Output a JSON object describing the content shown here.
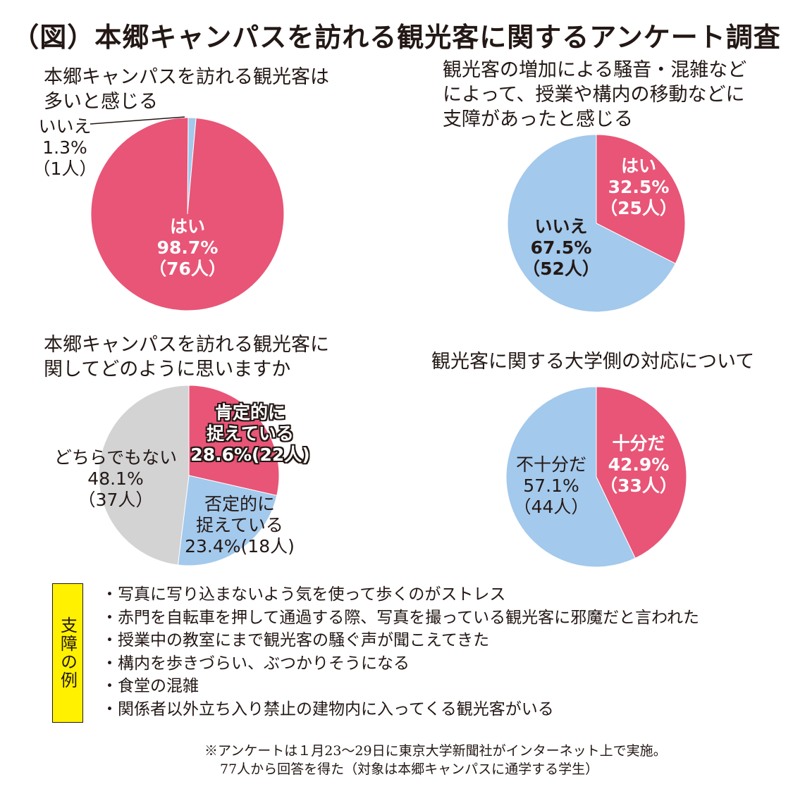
{
  "title": "（図）本郷キャンパスを訪れる観光客に関するアンケート調査",
  "colors": {
    "red": "#e85577",
    "blue": "#a3c9ec",
    "gray": "#d3d3d4",
    "yellow": "#fff100"
  },
  "chart_data": [
    {
      "type": "pie",
      "title": "本郷キャンパスを訪れる観光客は\n多いと感じる",
      "slices": [
        {
          "label": "いいえ",
          "percent": "1.3%",
          "count": "（1人）",
          "value": 1.3,
          "color": "#a3c9ec"
        },
        {
          "label": "はい",
          "percent": "98.7%",
          "count": "（76人）",
          "value": 98.7,
          "color": "#e85577"
        }
      ]
    },
    {
      "type": "pie",
      "title": "観光客の増加による騒音・混雑など\nによって、授業や構内の移動などに\n支障があったと感じる",
      "slices": [
        {
          "label": "はい",
          "percent": "32.5%",
          "count": "（25人）",
          "value": 32.5,
          "color": "#e85577"
        },
        {
          "label": "いいえ",
          "percent": "67.5%",
          "count": "（52人）",
          "value": 67.5,
          "color": "#a3c9ec"
        }
      ]
    },
    {
      "type": "pie",
      "title": "本郷キャンパスを訪れる観光客に\n関してどのように思いますか",
      "slices": [
        {
          "label": "肯定的に",
          "label2": "捉えている",
          "percent": "28.6%",
          "count": "(22人)",
          "value": 28.6,
          "color": "#e85577"
        },
        {
          "label": "否定的に",
          "label2": "捉えている",
          "percent": "23.4%",
          "count": "(18人)",
          "value": 23.4,
          "color": "#a3c9ec"
        },
        {
          "label": "どちらでもない",
          "percent": "48.1%",
          "count": "（37人）",
          "value": 48.1,
          "color": "#d3d3d4"
        }
      ]
    },
    {
      "type": "pie",
      "title": "観光客に関する大学側の対応について",
      "slices": [
        {
          "label": "十分だ",
          "percent": "42.9%",
          "count": "（33人）",
          "value": 42.9,
          "color": "#e85577"
        },
        {
          "label": "不十分だ",
          "percent": "57.1%",
          "count": "（44人）",
          "value": 57.1,
          "color": "#a3c9ec"
        }
      ]
    }
  ],
  "examples": {
    "tag": "支障の例",
    "items": [
      "写真に写り込まないよう気を使って歩くのがストレス",
      "赤門を自転車を押して通過する際、写真を撮っている観光客に邪魔だと言われた",
      "授業中の教室にまで観光客の騒ぐ声が聞こえてきた",
      "構内を歩きづらい、ぶつかりそうになる",
      "食堂の混雑",
      "関係者以外立ち入り禁止の建物内に入ってくる観光客がいる"
    ]
  },
  "note": {
    "line1": "※アンケートは１月23〜29日に東京大学新聞社がインターネット上で実施。",
    "line2": "77人から回答を得た（対象は本郷キャンパスに通学する学生）"
  }
}
